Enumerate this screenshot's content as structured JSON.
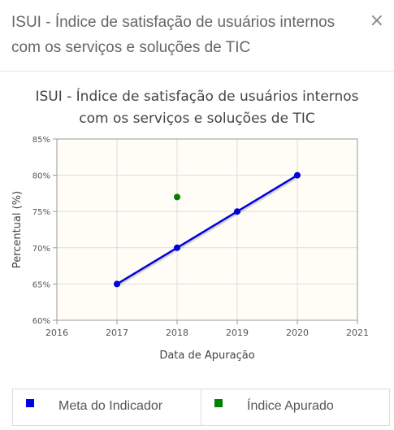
{
  "modal": {
    "title": "ISUI - Índice de satisfação de usuários internos com os serviços e soluções de TIC",
    "close_label": "×"
  },
  "chart_data": {
    "type": "line",
    "title": "ISUI - Índice de satisfação de usuários internos\ncom os serviços e soluções de TIC",
    "xlabel": "Data de Apuração",
    "ylabel": "Percentual (%)",
    "xlim": [
      2016,
      2021
    ],
    "ylim": [
      60,
      85
    ],
    "x_ticks": [
      "2016",
      "2017",
      "2018",
      "2019",
      "2020",
      "2021"
    ],
    "y_ticks": [
      "60%",
      "65%",
      "70%",
      "75%",
      "80%",
      "85%"
    ],
    "grid": true,
    "series": [
      {
        "name": "Meta do Indicador",
        "color": "#0000dd",
        "line": true,
        "x": [
          2017,
          2018,
          2019,
          2020
        ],
        "values": [
          65,
          70,
          75,
          80
        ]
      },
      {
        "name": "Índice Apurado",
        "color": "#008000",
        "line": false,
        "x": [
          2018
        ],
        "values": [
          77
        ]
      }
    ],
    "legend": "bottom"
  }
}
